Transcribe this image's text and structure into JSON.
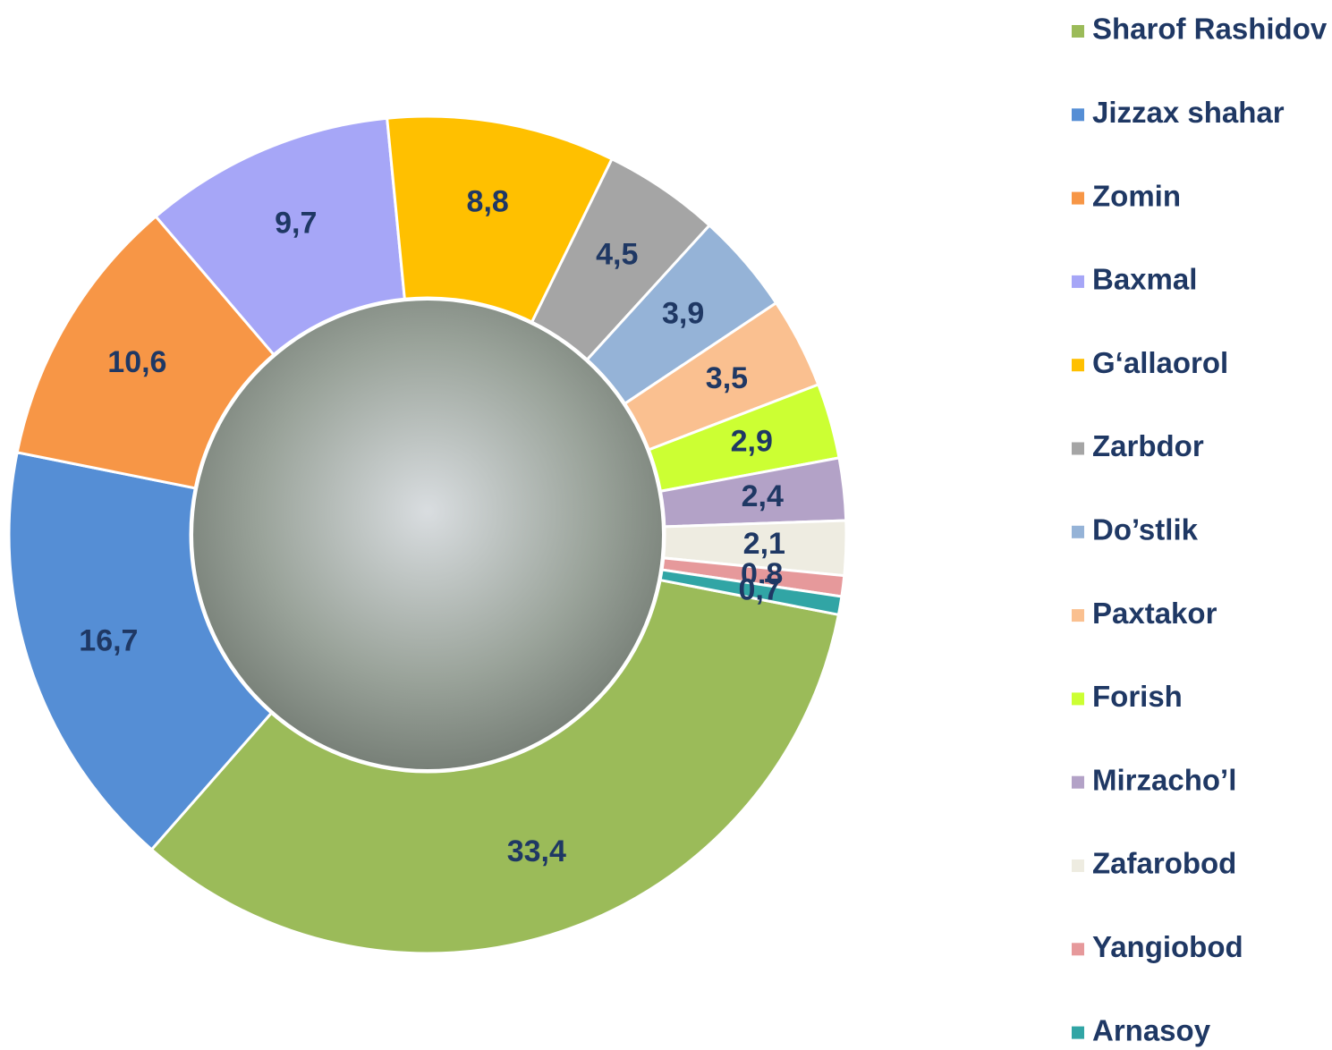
{
  "chart_data": {
    "type": "donut",
    "categories": [
      "Sharof Rashidov",
      "Jizzax shahar",
      "Zomin",
      "Baxmal",
      "G‘allaorol",
      "Zarbdor",
      "Do’stlik",
      "Paxtakor",
      "Forish",
      "Mirzacho’l",
      "Zafarobod",
      "Yangiobod",
      "Arnasoy"
    ],
    "values": [
      33.4,
      16.7,
      10.6,
      9.7,
      8.8,
      4.5,
      3.9,
      3.5,
      2.9,
      2.4,
      2.1,
      0.8,
      0.7
    ],
    "value_labels": [
      "33,4",
      "16,7",
      "10,6",
      "9,7",
      "8,8",
      "4,5",
      "3,9",
      "3,5",
      "2,9",
      "2,4",
      "2,1",
      "0,8",
      "0,7"
    ],
    "colors": [
      "#9bbb59",
      "#558ed5",
      "#f79646",
      "#a6a6f7",
      "#ffc000",
      "#a5a5a5",
      "#95b3d7",
      "#fac090",
      "#ccff33",
      "#b3a2c7",
      "#eeece1",
      "#e6999b",
      "#31a5a5"
    ],
    "legend": "right"
  }
}
